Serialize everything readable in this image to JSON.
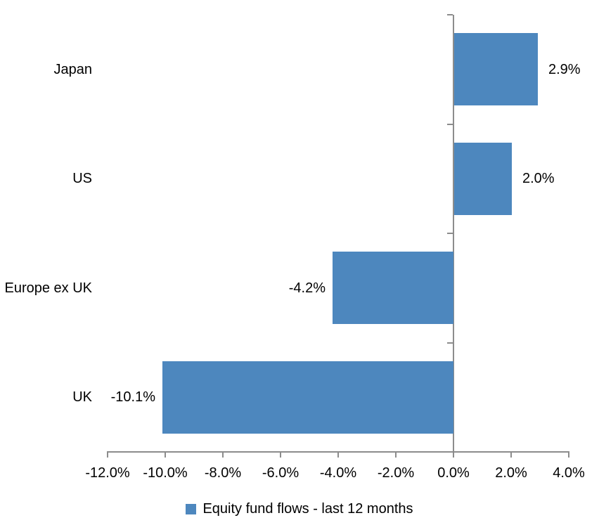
{
  "chart_data": {
    "type": "bar",
    "orientation": "horizontal",
    "title": "",
    "categories": [
      "Japan",
      "US",
      "Europe ex UK",
      "UK"
    ],
    "values": [
      2.9,
      2.0,
      -4.2,
      -10.1
    ],
    "value_labels": [
      "2.9%",
      "2.0%",
      "-4.2%",
      "-10.1%"
    ],
    "series_name": "Equity fund flows - last 12 months",
    "xlim": [
      -12,
      4
    ],
    "x_tick_step": 2,
    "x_tick_labels": [
      "-12.0%",
      "-10.0%",
      "-8.0%",
      "-6.0%",
      "-4.0%",
      "-2.0%",
      "0.0%",
      "2.0%",
      "4.0%"
    ],
    "grid": false,
    "legend_position": "bottom",
    "colors": {
      "bar": "#4D87BE",
      "axis": "#8C8C8C",
      "text": "#000000",
      "background": "#FFFFFF"
    }
  },
  "legend": {
    "label": "Equity fund flows - last 12 months"
  }
}
